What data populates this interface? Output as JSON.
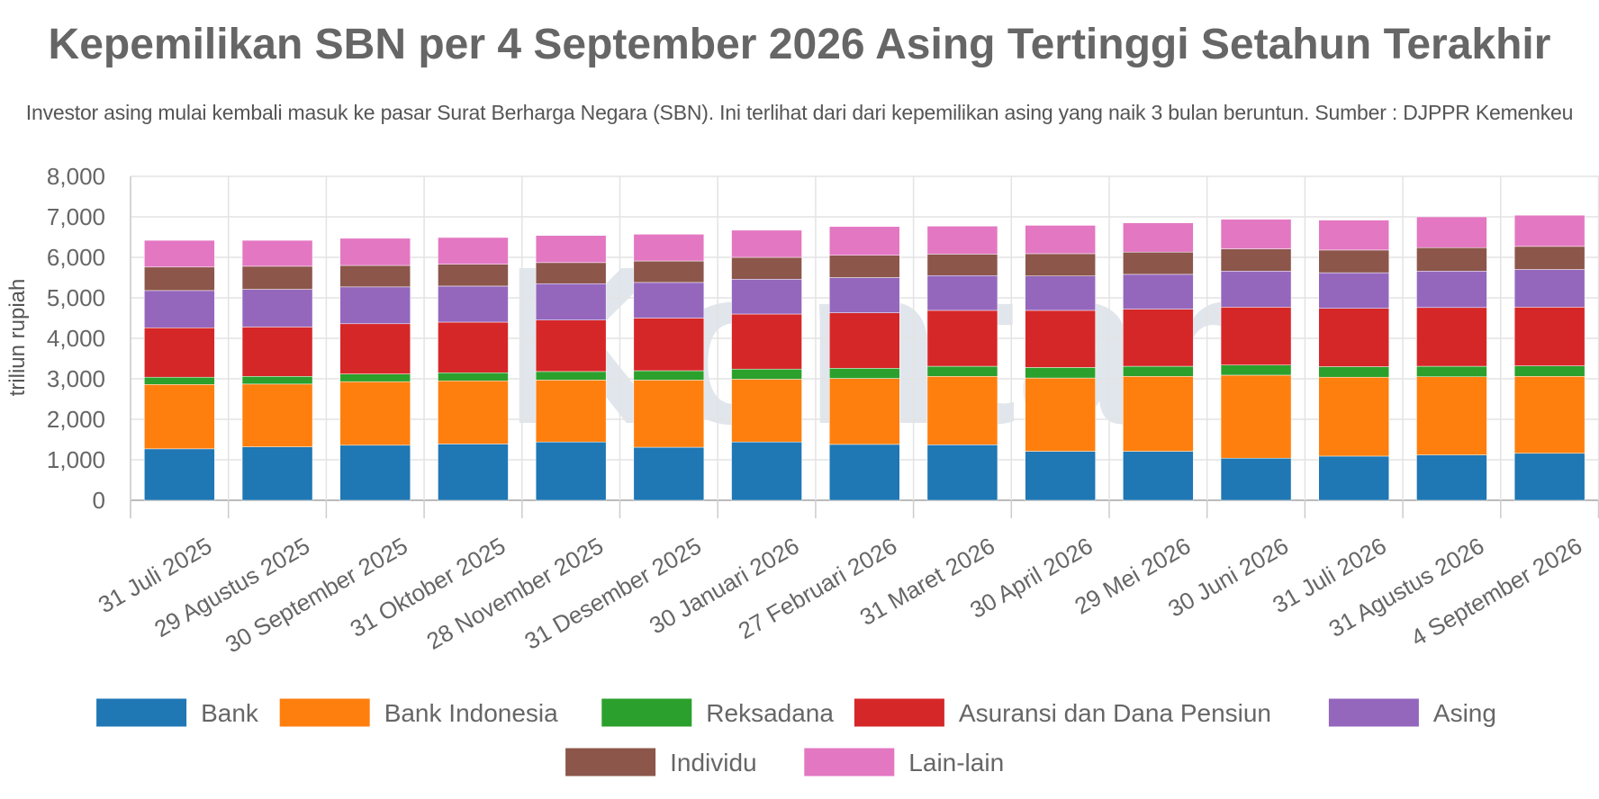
{
  "title": "Kepemilikan SBN per 4 September 2026 Asing Tertinggi Setahun Terakhir",
  "subtitle": "Investor asing mulai kembali masuk ke pasar Surat Berharga Negara (SBN). Ini terlihat dari dari kepemilikan asing yang naik 3 bulan beruntun. Sumber : DJPPR Kemenkeu",
  "watermark": "Kontan",
  "chart_data": {
    "type": "bar",
    "stacked": true,
    "title": "Kepemilikan SBN per 4 September 2026 Asing Tertinggi Setahun Terakhir",
    "xlabel": "",
    "ylabel": "triliun rupiah",
    "ylim": [
      0,
      8000
    ],
    "yticks": [
      "0",
      "1,000",
      "2,000",
      "3,000",
      "4,000",
      "5,000",
      "6,000",
      "7,000",
      "8,000"
    ],
    "grid": true,
    "legend_position": "bottom",
    "categories": [
      "31 Juli 2025",
      "29 Agustus 2025",
      "30 September 2025",
      "31 Oktober 2025",
      "28 November 2025",
      "31 Desember 2025",
      "30 Januari 2026",
      "27 Februari 2026",
      "31 Maret 2026",
      "30 April 2026",
      "29 Mei 2026",
      "30 Juni 2026",
      "31 Juli 2026",
      "31 Agustus 2026",
      "4 September 2026"
    ],
    "series": [
      {
        "name": "Bank",
        "color": "#1f77b4",
        "values": [
          1270,
          1320,
          1360,
          1390,
          1440,
          1310,
          1440,
          1380,
          1370,
          1210,
          1210,
          1040,
          1090,
          1120,
          1160
        ]
      },
      {
        "name": "Bank Indonesia",
        "color": "#ff7f0e",
        "values": [
          1590,
          1550,
          1570,
          1560,
          1530,
          1660,
          1550,
          1630,
          1690,
          1810,
          1850,
          2050,
          1950,
          1930,
          1900
        ]
      },
      {
        "name": "Reksadana",
        "color": "#2ca02c",
        "values": [
          180,
          190,
          190,
          200,
          210,
          230,
          250,
          250,
          250,
          260,
          250,
          250,
          260,
          260,
          260
        ]
      },
      {
        "name": "Asuransi dan Dana Pensiun",
        "color": "#d62728",
        "values": [
          1220,
          1220,
          1240,
          1250,
          1270,
          1300,
          1360,
          1370,
          1380,
          1410,
          1410,
          1430,
          1440,
          1450,
          1450
        ]
      },
      {
        "name": "Asing",
        "color": "#9467bd",
        "values": [
          920,
          930,
          910,
          890,
          900,
          880,
          860,
          870,
          860,
          850,
          860,
          890,
          880,
          900,
          930
        ]
      },
      {
        "name": "Individu",
        "color": "#8c564b",
        "values": [
          580,
          570,
          530,
          540,
          520,
          530,
          540,
          550,
          530,
          550,
          550,
          550,
          560,
          580,
          570
        ]
      },
      {
        "name": "Lain-lain",
        "color": "#e377c2",
        "values": [
          660,
          640,
          670,
          660,
          670,
          660,
          670,
          710,
          690,
          700,
          720,
          730,
          740,
          760,
          770
        ]
      }
    ]
  }
}
